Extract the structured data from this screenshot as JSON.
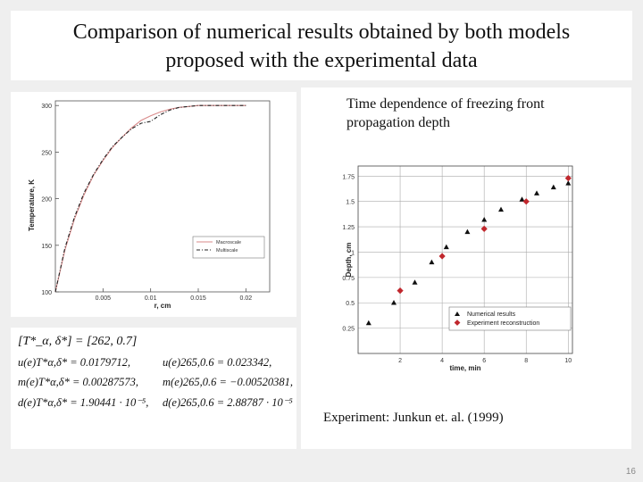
{
  "slide": {
    "title_line1": "Comparison of numerical results obtained by both models",
    "title_line2": "proposed with the experimental data",
    "page_number": "16"
  },
  "left_chart": {
    "ylabel": "Temperature, K",
    "xlabel": "r, cm",
    "x_ticks": [
      "0.005",
      "0.01",
      "0.015",
      "0.02"
    ],
    "y_ticks": [
      "100",
      "150",
      "200",
      "250",
      "300"
    ],
    "legend": [
      "Macroscale",
      "Multiscale"
    ]
  },
  "formulas": {
    "header": "[T*_α, δ*] = [262, 0.7]",
    "rows": [
      {
        "left": "u(e)T*α,δ* = 0.0179712,",
        "right": "u(e)265,0.6 = 0.023342,"
      },
      {
        "left": "m(e)T*α,δ* = 0.00287573,",
        "right": "m(e)265,0.6 = −0.00520381,"
      },
      {
        "left": "d(e)T*α,δ* = 1.90441 · 10⁻⁵,",
        "right": "d(e)265,0.6 = 2.88787 · 10⁻⁵"
      }
    ]
  },
  "right_chart_caption_line1": "Time dependence of freezing front",
  "right_chart_caption_line2": "propagation depth",
  "experiment_caption": "Experiment: Junkun et. al. (1999)",
  "chart_data": [
    {
      "type": "line",
      "title": "",
      "xlabel": "r, cm",
      "ylabel": "Temperature, K",
      "xlim": [
        0,
        0.0225
      ],
      "ylim": [
        100,
        305
      ],
      "series": [
        {
          "name": "Macroscale",
          "x": [
            0,
            0.001,
            0.002,
            0.003,
            0.004,
            0.005,
            0.006,
            0.007,
            0.008,
            0.009,
            0.01,
            0.011,
            0.012,
            0.013,
            0.014,
            0.015,
            0.016,
            0.018,
            0.02
          ],
          "y": [
            100,
            145,
            178,
            204,
            225,
            241,
            255,
            266,
            276,
            284,
            289,
            293,
            296,
            298,
            299,
            300,
            300,
            300,
            300
          ]
        },
        {
          "name": "Multiscale",
          "x": [
            0,
            0.001,
            0.002,
            0.003,
            0.004,
            0.005,
            0.006,
            0.007,
            0.008,
            0.009,
            0.01,
            0.011,
            0.012,
            0.013,
            0.014,
            0.015,
            0.016,
            0.018,
            0.02
          ],
          "y": [
            100,
            147,
            180,
            206,
            226,
            242,
            256,
            266,
            275,
            281,
            283,
            290,
            295,
            298,
            299,
            300,
            300,
            300,
            300
          ]
        }
      ],
      "legend_position": "bottom-right",
      "grid": false
    },
    {
      "type": "scatter",
      "title": "",
      "xlabel": "time, min",
      "ylabel": "Depth, cm",
      "x_ticks": [
        2,
        4,
        6,
        8,
        10
      ],
      "y_ticks": [
        0.25,
        0.5,
        0.75,
        1,
        1.25,
        1.5,
        1.75
      ],
      "xlim": [
        0,
        10.2
      ],
      "ylim": [
        0,
        1.85
      ],
      "grid": true,
      "legend_position": "bottom-right",
      "series": [
        {
          "name": "Numerical results",
          "marker": "triangle",
          "color": "#111111",
          "x": [
            0.5,
            1.7,
            2.7,
            3.5,
            4.2,
            5.2,
            6,
            6.8,
            7.8,
            8.5,
            9.3,
            10
          ],
          "y": [
            0.3,
            0.5,
            0.7,
            0.9,
            1.05,
            1.2,
            1.32,
            1.42,
            1.52,
            1.58,
            1.64,
            1.68
          ]
        },
        {
          "name": "Experiment reconstruction",
          "marker": "diamond",
          "color": "#c0272d",
          "x": [
            2,
            4,
            6,
            8,
            10
          ],
          "y": [
            0.62,
            0.96,
            1.23,
            1.5,
            1.73
          ]
        }
      ]
    }
  ]
}
